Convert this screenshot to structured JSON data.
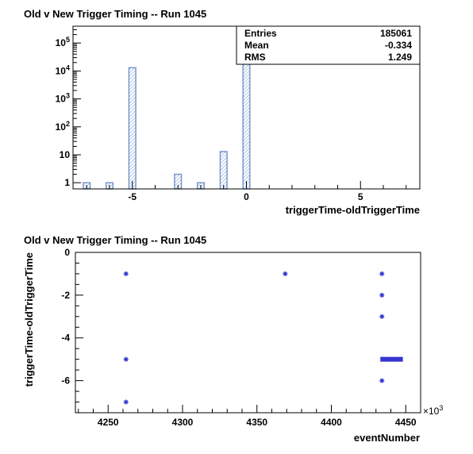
{
  "chart_data": [
    {
      "type": "bar",
      "title": "Old v New Trigger Timing -- Run 1045",
      "xlabel": "triggerTime-oldTriggerTime",
      "ylabel": "",
      "xlim": [
        -7.6,
        7.6
      ],
      "ylim": [
        0.6,
        400000
      ],
      "y_scale": "log",
      "grid": false,
      "x_ticks": [
        -5,
        0,
        5
      ],
      "y_ticks": [
        {
          "value": 1,
          "base": "1",
          "exp": ""
        },
        {
          "value": 10,
          "base": "10",
          "exp": ""
        },
        {
          "value": 100,
          "base": "10",
          "exp": "2"
        },
        {
          "value": 1000,
          "base": "10",
          "exp": "3"
        },
        {
          "value": 10000,
          "base": "10",
          "exp": "4"
        },
        {
          "value": 100000,
          "base": "10",
          "exp": "5"
        }
      ],
      "bin_width": 0.3,
      "bars": [
        {
          "x": -7,
          "value": 1
        },
        {
          "x": -6,
          "value": 1
        },
        {
          "x": -5,
          "value": 13000
        },
        {
          "x": -3,
          "value": 2
        },
        {
          "x": -2,
          "value": 1
        },
        {
          "x": -1,
          "value": 13
        },
        {
          "x": 0,
          "value": 172000
        }
      ],
      "stats": [
        {
          "label": "Entries",
          "value": "185061"
        },
        {
          "label": "Mean",
          "value": "-0.334"
        },
        {
          "label": "RMS",
          "value": "1.249"
        }
      ],
      "bar_color": "#7090c8"
    },
    {
      "type": "scatter",
      "title": "Old v New Trigger Timing -- Run 1045",
      "xlabel": "eventNumber",
      "ylabel": "triggerTime-oldTriggerTime",
      "x_multiplier": "×10",
      "x_multiplier_exp": "3",
      "xlim": [
        4228,
        4460
      ],
      "ylim": [
        -7.5,
        0
      ],
      "x_ticks": [
        4250,
        4300,
        4350,
        4400,
        4450
      ],
      "y_ticks": [
        0,
        -2,
        -4,
        -6
      ],
      "grid": false,
      "marker_color": "#3535d0",
      "points": [
        {
          "x": 4262,
          "y": -1
        },
        {
          "x": 4262,
          "y": -5
        },
        {
          "x": 4262,
          "y": -7
        },
        {
          "x": 4369,
          "y": -1
        },
        {
          "x": 4434,
          "y": -1
        },
        {
          "x": 4434,
          "y": -2
        },
        {
          "x": 4434,
          "y": -3
        },
        {
          "x": 4434,
          "y": -6
        }
      ],
      "dense_segments": [
        {
          "x_start": 4434,
          "x_end": 4447,
          "y": -5
        }
      ]
    }
  ]
}
